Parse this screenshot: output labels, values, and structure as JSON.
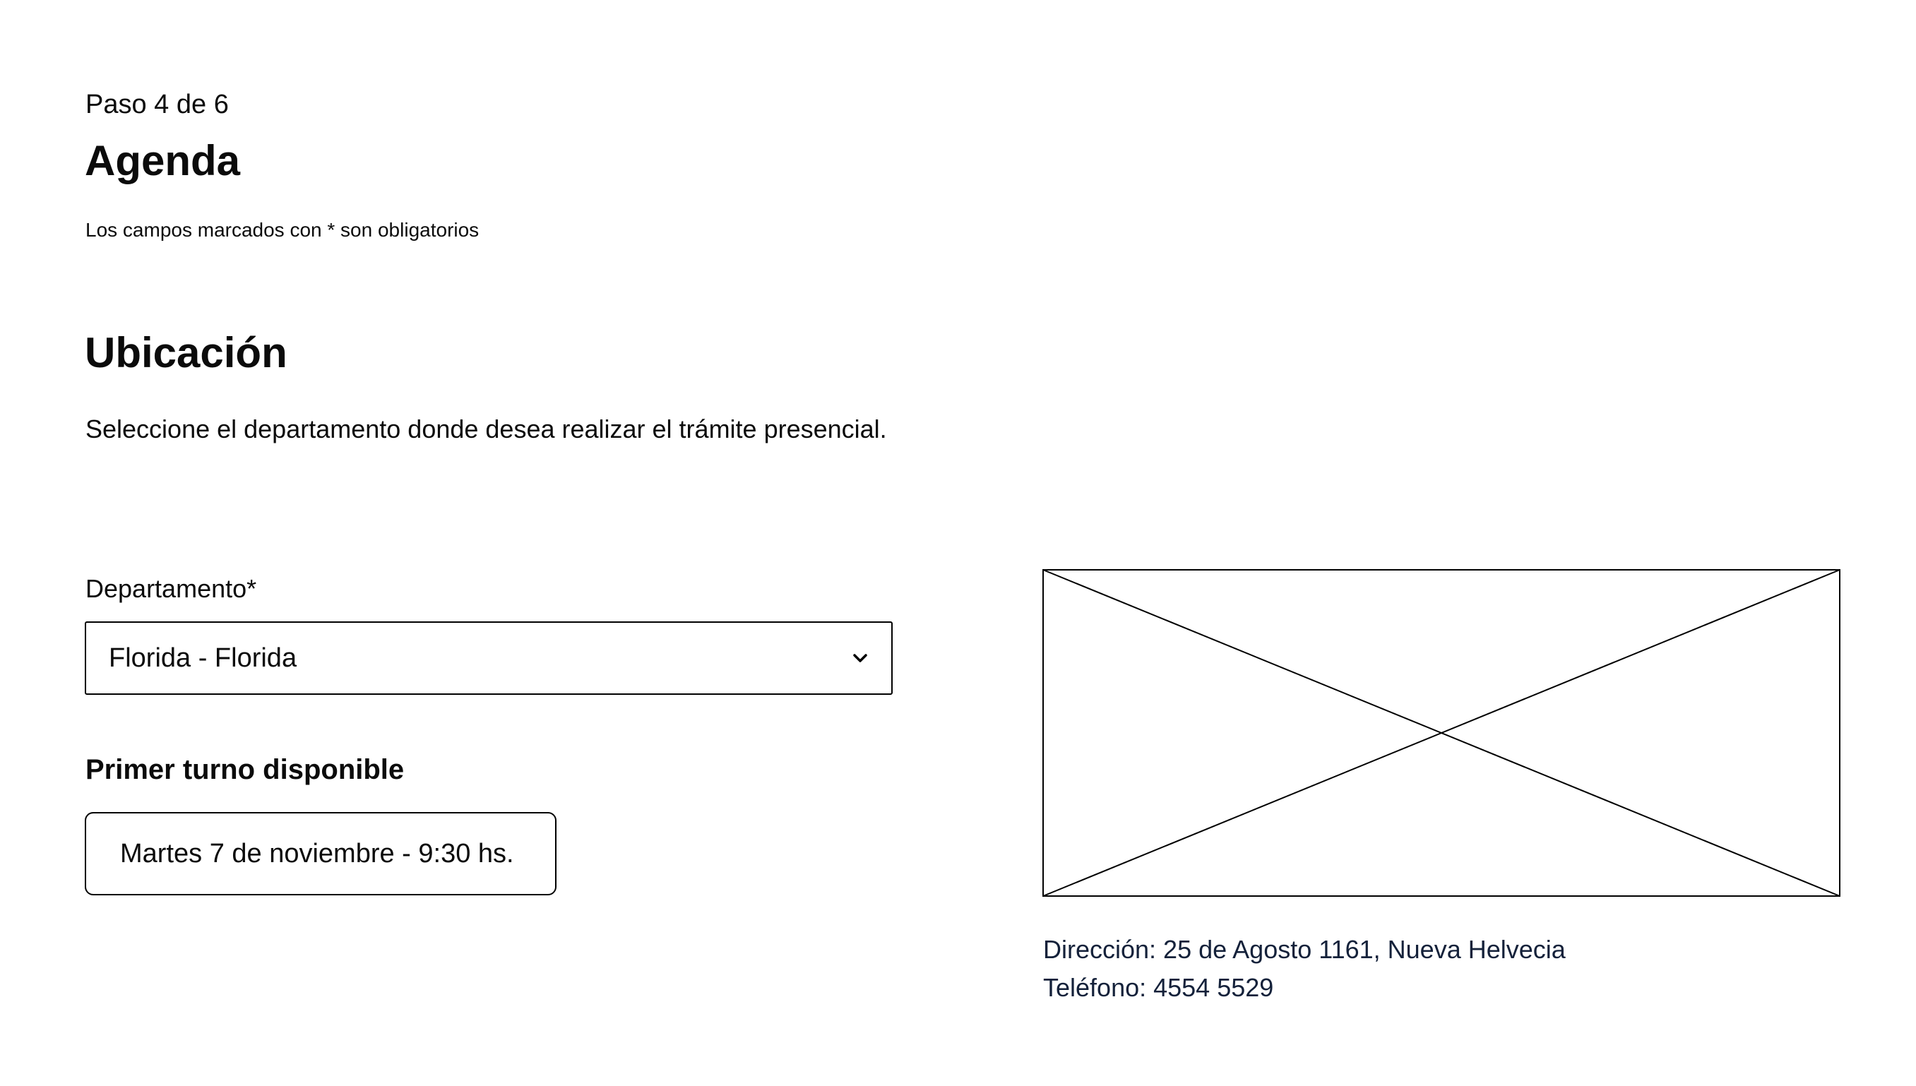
{
  "header": {
    "step": "Paso 4 de 6",
    "title": "Agenda",
    "required_note": "Los campos marcados con * son obligatorios"
  },
  "location": {
    "section_title": "Ubicación",
    "description": "Seleccione el departamento donde desea realizar el trámite presencial.",
    "department": {
      "label": "Departamento*",
      "selected_value": "Florida - Florida",
      "icon": "chevron-down-icon"
    },
    "first_slot": {
      "label": "Primer turno disponible",
      "value": "Martes 7 de noviembre - 9:30 hs."
    },
    "map": {
      "icon": "image-placeholder-icon"
    },
    "office": {
      "address": "Dirección: 25 de Agosto 1161, Nueva Helvecia",
      "phone": "Teléfono: 4554 5529"
    }
  },
  "colors": {
    "text": "#0b0b0b",
    "border": "#000000",
    "address_text": "#14213a",
    "background": "#ffffff"
  }
}
